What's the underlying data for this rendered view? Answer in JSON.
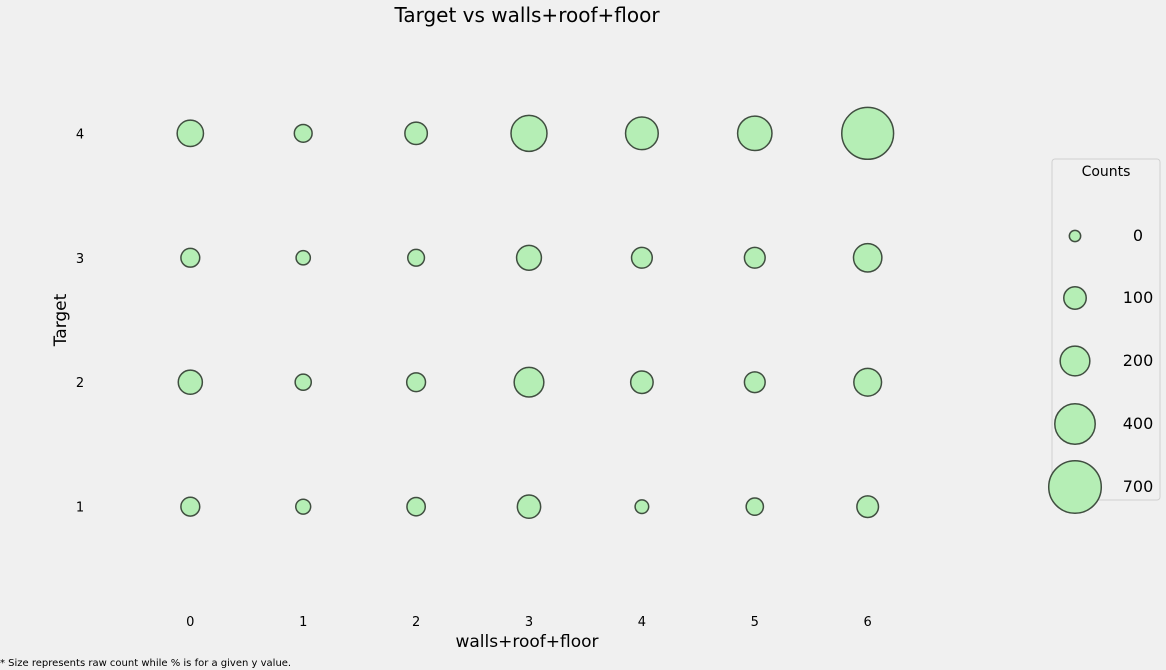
{
  "chart_data": {
    "type": "scatter",
    "title": "Target vs walls+roof+floor",
    "xlabel": "walls+roof+floor",
    "ylabel": "Target",
    "x_ticks": [
      0,
      1,
      2,
      3,
      4,
      5,
      6
    ],
    "y_ticks": [
      1,
      2,
      3,
      4
    ],
    "xlim": [
      -0.8,
      6.8
    ],
    "ylim": [
      0.25,
      4.75
    ],
    "grid": false,
    "marker_color": "#b5eeb5",
    "marker_edge_color": "#404e40",
    "points": [
      {
        "x": 0,
        "y": 4,
        "count": 170
      },
      {
        "x": 1,
        "y": 4,
        "count": 70
      },
      {
        "x": 2,
        "y": 4,
        "count": 120
      },
      {
        "x": 3,
        "y": 4,
        "count": 330
      },
      {
        "x": 4,
        "y": 4,
        "count": 270
      },
      {
        "x": 5,
        "y": 4,
        "count": 300
      },
      {
        "x": 6,
        "y": 4,
        "count": 700
      },
      {
        "x": 0,
        "y": 3,
        "count": 80
      },
      {
        "x": 1,
        "y": 3,
        "count": 40
      },
      {
        "x": 2,
        "y": 3,
        "count": 60
      },
      {
        "x": 3,
        "y": 3,
        "count": 150
      },
      {
        "x": 4,
        "y": 3,
        "count": 100
      },
      {
        "x": 5,
        "y": 3,
        "count": 100
      },
      {
        "x": 6,
        "y": 3,
        "count": 200
      },
      {
        "x": 0,
        "y": 2,
        "count": 140
      },
      {
        "x": 1,
        "y": 2,
        "count": 55
      },
      {
        "x": 2,
        "y": 2,
        "count": 80
      },
      {
        "x": 3,
        "y": 2,
        "count": 220
      },
      {
        "x": 4,
        "y": 2,
        "count": 120
      },
      {
        "x": 5,
        "y": 2,
        "count": 100
      },
      {
        "x": 6,
        "y": 2,
        "count": 190
      },
      {
        "x": 0,
        "y": 1,
        "count": 80
      },
      {
        "x": 1,
        "y": 1,
        "count": 45
      },
      {
        "x": 2,
        "y": 1,
        "count": 75
      },
      {
        "x": 3,
        "y": 1,
        "count": 130
      },
      {
        "x": 4,
        "y": 1,
        "count": 35
      },
      {
        "x": 5,
        "y": 1,
        "count": 65
      },
      {
        "x": 6,
        "y": 1,
        "count": 110
      }
    ],
    "legend": {
      "title": "Counts",
      "placement": "right",
      "entries": [
        {
          "label": "0",
          "count": 20
        },
        {
          "label": "100",
          "count": 120
        },
        {
          "label": "200",
          "count": 220
        },
        {
          "label": "400",
          "count": 420
        },
        {
          "label": "700",
          "count": 720
        }
      ]
    },
    "footnote": "* Size represents raw count while % is for a given y value."
  }
}
